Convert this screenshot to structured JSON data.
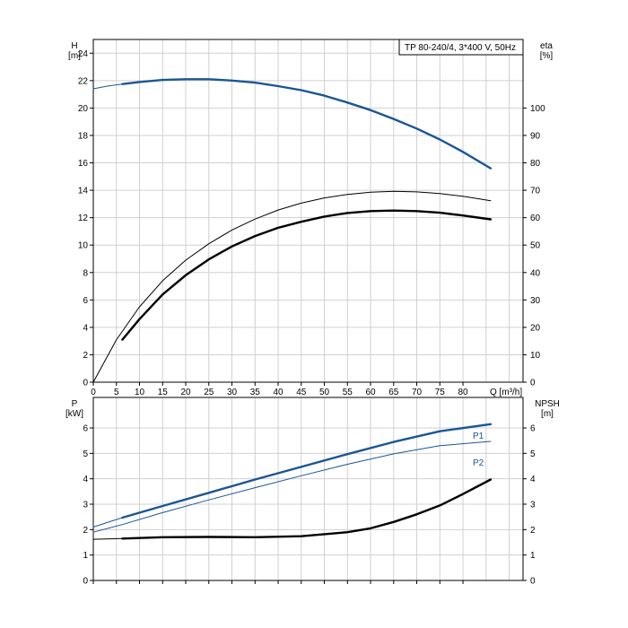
{
  "chart_data": [
    {
      "type": "line",
      "panel": "top",
      "title": "TP 80-240/4, 3*400 V, 50Hz",
      "xlabel": "Q [m³/h]",
      "ylabel_left": "H",
      "ylabel_left_unit": "[m]",
      "ylabel_right": "eta",
      "ylabel_right_unit": "[%]",
      "xlim": [
        0,
        93
      ],
      "ylim_left": [
        0,
        25
      ],
      "ylim_right": [
        0,
        125
      ],
      "x_ticks": [
        0,
        5,
        10,
        15,
        20,
        25,
        30,
        35,
        40,
        45,
        50,
        55,
        60,
        65,
        70,
        75,
        80
      ],
      "y_left_ticks": [
        0,
        2,
        4,
        6,
        8,
        10,
        12,
        14,
        16,
        18,
        20,
        22,
        24
      ],
      "y_right_ticks": [
        0,
        10,
        20,
        30,
        40,
        50,
        60,
        70,
        80,
        90,
        100
      ],
      "grid": true,
      "series": [
        {
          "axis": "left",
          "color": "#1a5694",
          "style": "thin-extension",
          "x": [
            0,
            3,
            6.3
          ],
          "y": [
            21.4,
            21.6,
            21.75
          ]
        },
        {
          "axis": "left",
          "color": "#1a5694",
          "style": "thick",
          "x": [
            6.3,
            10,
            15,
            20,
            25,
            30,
            35,
            40,
            45,
            50,
            55,
            60,
            65,
            70,
            75,
            80,
            86
          ],
          "y": [
            21.75,
            21.9,
            22.05,
            22.1,
            22.1,
            22.0,
            21.85,
            21.6,
            21.3,
            20.9,
            20.4,
            19.85,
            19.2,
            18.5,
            17.7,
            16.8,
            15.6
          ]
        },
        {
          "axis": "right",
          "color": "#000000",
          "style": "thin",
          "x": [
            0,
            5,
            10,
            15,
            20,
            25,
            30,
            35,
            40,
            45,
            50,
            55,
            60,
            65,
            70,
            75,
            80,
            86
          ],
          "y": [
            0,
            15.5,
            27.5,
            37.0,
            44.5,
            50.5,
            55.5,
            59.5,
            62.8,
            65.3,
            67.2,
            68.5,
            69.3,
            69.6,
            69.4,
            68.8,
            67.8,
            66.2
          ]
        },
        {
          "axis": "right",
          "color": "#000000",
          "style": "thick",
          "x": [
            6.3,
            10,
            15,
            20,
            25,
            30,
            35,
            40,
            45,
            50,
            55,
            60,
            65,
            70,
            75,
            80,
            86
          ],
          "y": [
            15.5,
            23.0,
            32.0,
            39.0,
            44.8,
            49.5,
            53.3,
            56.3,
            58.5,
            60.4,
            61.7,
            62.4,
            62.6,
            62.4,
            61.8,
            60.8,
            59.4
          ]
        }
      ]
    },
    {
      "type": "line",
      "panel": "bottom",
      "ylabel_left": "P",
      "ylabel_left_unit": "[kW]",
      "ylabel_right": "NPSH",
      "ylabel_right_unit": "[m]",
      "xlim": [
        0,
        93
      ],
      "ylim_left": [
        0,
        7.2
      ],
      "ylim_right": [
        0,
        7.2
      ],
      "y_left_ticks": [
        0,
        1,
        2,
        3,
        4,
        5,
        6
      ],
      "y_right_ticks": [
        0,
        1,
        2,
        3,
        4,
        5,
        6
      ],
      "grid": true,
      "series": [
        {
          "name": "P1",
          "axis": "left",
          "color": "#1a5694",
          "style": "thin-extension",
          "x": [
            0,
            3,
            6.3
          ],
          "y": [
            2.1,
            2.28,
            2.47
          ]
        },
        {
          "name": "P1",
          "axis": "left",
          "color": "#1a5694",
          "style": "thick",
          "x": [
            6.3,
            15,
            25,
            35,
            45,
            55,
            65,
            75,
            86
          ],
          "y": [
            2.47,
            2.93,
            3.45,
            3.97,
            4.47,
            4.97,
            5.45,
            5.87,
            6.15
          ]
        },
        {
          "name": "P2",
          "axis": "left",
          "color": "#1a5694",
          "style": "thin",
          "x": [
            0,
            6.3,
            15,
            25,
            35,
            45,
            55,
            65,
            75,
            86
          ],
          "y": [
            1.9,
            2.2,
            2.67,
            3.17,
            3.65,
            4.12,
            4.57,
            4.98,
            5.3,
            5.47
          ]
        },
        {
          "name": "NPSH",
          "axis": "right",
          "color": "#000000",
          "style": "thin-extension",
          "x": [
            0,
            6.3
          ],
          "y": [
            1.62,
            1.65
          ]
        },
        {
          "name": "NPSH",
          "axis": "right",
          "color": "#000000",
          "style": "thick",
          "x": [
            6.3,
            15,
            25,
            35,
            45,
            55,
            60,
            65,
            70,
            75,
            80,
            86
          ],
          "y": [
            1.65,
            1.7,
            1.71,
            1.7,
            1.74,
            1.9,
            2.05,
            2.3,
            2.6,
            2.95,
            3.4,
            3.97
          ]
        }
      ]
    }
  ]
}
